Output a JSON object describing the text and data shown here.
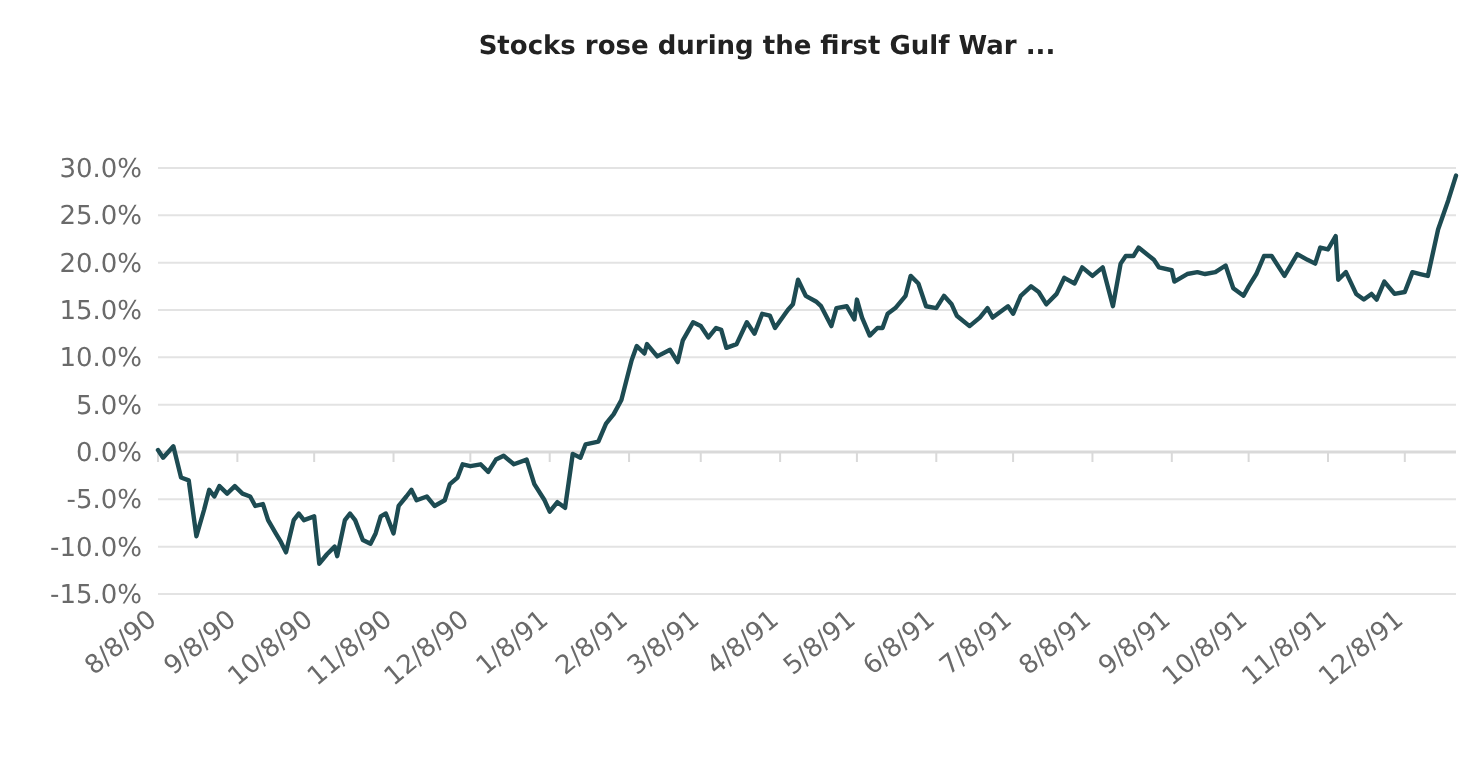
{
  "chart_data": {
    "type": "line",
    "title": "Stocks rose during the first Gulf War ...",
    "x": [
      "1990-08-08",
      "1990-08-10",
      "1990-08-14",
      "1990-08-17",
      "1990-08-20",
      "1990-08-23",
      "1990-08-26",
      "1990-08-28",
      "1990-08-30",
      "1990-09-01",
      "1990-09-04",
      "1990-09-07",
      "1990-09-10",
      "1990-09-13",
      "1990-09-15",
      "1990-09-18",
      "1990-09-20",
      "1990-09-23",
      "1990-09-25",
      "1990-09-27",
      "1990-09-30",
      "1990-10-02",
      "1990-10-04",
      "1990-10-08",
      "1990-10-10",
      "1990-10-13",
      "1990-10-16",
      "1990-10-17",
      "1990-10-20",
      "1990-10-22",
      "1990-10-24",
      "1990-10-27",
      "1990-10-30",
      "1990-11-01",
      "1990-11-03",
      "1990-11-05",
      "1990-11-08",
      "1990-11-10",
      "1990-11-13",
      "1990-11-15",
      "1990-11-17",
      "1990-11-21",
      "1990-11-24",
      "1990-11-28",
      "1990-11-30",
      "1990-12-03",
      "1990-12-05",
      "1990-12-08",
      "1990-12-12",
      "1990-12-15",
      "1990-12-18",
      "1990-12-21",
      "1990-12-25",
      "1990-12-30",
      "1991-01-02",
      "1991-01-06",
      "1991-01-08",
      "1991-01-11",
      "1991-01-14",
      "1991-01-17",
      "1991-01-20",
      "1991-01-22",
      "1991-01-27",
      "1991-01-30",
      "1991-02-02",
      "1991-02-05",
      "1991-02-07",
      "1991-02-09",
      "1991-02-11",
      "1991-02-14",
      "1991-02-15",
      "1991-02-19",
      "1991-02-24",
      "1991-02-27",
      "1991-03-01",
      "1991-03-05",
      "1991-03-08",
      "1991-03-11",
      "1991-03-14",
      "1991-03-16",
      "1991-03-18",
      "1991-03-22",
      "1991-03-26",
      "1991-03-29",
      "1991-04-01",
      "1991-04-04",
      "1991-04-06",
      "1991-04-11",
      "1991-04-13",
      "1991-04-15",
      "1991-04-18",
      "1991-04-22",
      "1991-04-24",
      "1991-04-28",
      "1991-04-30",
      "1991-05-04",
      "1991-05-07",
      "1991-05-08",
      "1991-05-10",
      "1991-05-13",
      "1991-05-16",
      "1991-05-18",
      "1991-05-20",
      "1991-05-23",
      "1991-05-27",
      "1991-05-29",
      "1991-06-01",
      "1991-06-04",
      "1991-06-08",
      "1991-06-11",
      "1991-06-14",
      "1991-06-16",
      "1991-06-21",
      "1991-06-25",
      "1991-06-28",
      "1991-06-30",
      "1991-07-06",
      "1991-07-08",
      "1991-07-11",
      "1991-07-15",
      "1991-07-18",
      "1991-07-21",
      "1991-07-25",
      "1991-07-28",
      "1991-08-01",
      "1991-08-04",
      "1991-08-08",
      "1991-08-12",
      "1991-08-16",
      "1991-08-19",
      "1991-08-21",
      "1991-08-24",
      "1991-08-26",
      "1991-09-01",
      "1991-09-03",
      "1991-09-08",
      "1991-09-09",
      "1991-09-14",
      "1991-09-18",
      "1991-09-21",
      "1991-09-25",
      "1991-09-29",
      "1991-10-02",
      "1991-10-06",
      "1991-10-08",
      "1991-10-11",
      "1991-10-14",
      "1991-10-17",
      "1991-10-22",
      "1991-10-27",
      "1991-10-31",
      "1991-11-03",
      "1991-11-05",
      "1991-11-08",
      "1991-11-11",
      "1991-11-12",
      "1991-11-15",
      "1991-11-19",
      "1991-11-22",
      "1991-11-25",
      "1991-11-27",
      "1991-11-30",
      "1991-12-04",
      "1991-12-08",
      "1991-12-11",
      "1991-12-14",
      "1991-12-17",
      "1991-12-21",
      "1991-12-25",
      "1991-12-28"
    ],
    "series": [
      {
        "color": "#1d4b52",
        "values": [
          0.2,
          -0.6,
          0.6,
          -2.7,
          -3.0,
          -8.9,
          -6.1,
          -4.0,
          -4.7,
          -3.6,
          -4.4,
          -3.6,
          -4.4,
          -4.7,
          -5.7,
          -5.5,
          -7.2,
          -8.6,
          -9.5,
          -10.6,
          -7.2,
          -6.5,
          -7.2,
          -6.8,
          -11.8,
          -10.8,
          -10.0,
          -11.0,
          -7.2,
          -6.5,
          -7.2,
          -9.3,
          -9.7,
          -8.6,
          -6.8,
          -6.5,
          -8.6,
          -5.7,
          -4.7,
          -4.0,
          -5.1,
          -4.7,
          -5.7,
          -5.1,
          -3.4,
          -2.7,
          -1.3,
          -1.5,
          -1.3,
          -2.1,
          -0.8,
          -0.4,
          -1.3,
          -0.8,
          -3.4,
          -5.1,
          -6.3,
          -5.3,
          -5.9,
          -0.2,
          -0.6,
          0.8,
          1.1,
          3.0,
          4.0,
          5.5,
          7.6,
          9.7,
          11.2,
          10.4,
          11.4,
          10.1,
          10.8,
          9.5,
          11.8,
          13.7,
          13.3,
          12.1,
          13.1,
          12.9,
          11.0,
          11.4,
          13.7,
          12.5,
          14.6,
          14.4,
          13.1,
          15.0,
          15.6,
          18.2,
          16.5,
          15.9,
          15.4,
          13.3,
          15.2,
          15.4,
          14.0,
          16.1,
          14.2,
          12.3,
          13.1,
          13.1,
          14.6,
          15.2,
          16.5,
          18.6,
          17.8,
          15.4,
          15.2,
          16.5,
          15.6,
          14.4,
          13.3,
          14.2,
          15.2,
          14.2,
          15.4,
          14.6,
          16.5,
          17.5,
          16.9,
          15.6,
          16.7,
          18.4,
          17.8,
          19.5,
          18.6,
          19.5,
          15.4,
          19.9,
          20.7,
          20.7,
          21.6,
          20.3,
          19.5,
          19.2,
          18.0,
          18.8,
          19.0,
          18.8,
          19.0,
          19.7,
          17.3,
          16.5,
          17.5,
          18.8,
          20.7,
          20.7,
          18.6,
          20.9,
          20.3,
          19.9,
          21.6,
          21.4,
          22.8,
          18.2,
          19.0,
          16.7,
          16.1,
          16.7,
          16.1,
          18.0,
          16.7,
          16.9,
          19.0,
          18.8,
          18.6,
          23.5,
          26.6,
          29.2
        ]
      }
    ],
    "xlim": [
      "1990-08-08",
      "1991-12-28"
    ],
    "xticks": [
      {
        "value": "1990-08-08",
        "label": "8/8/90"
      },
      {
        "value": "1990-09-08",
        "label": "9/8/90"
      },
      {
        "value": "1990-10-08",
        "label": "10/8/90"
      },
      {
        "value": "1990-11-08",
        "label": "11/8/90"
      },
      {
        "value": "1990-12-08",
        "label": "12/8/90"
      },
      {
        "value": "1991-01-08",
        "label": "1/8/91"
      },
      {
        "value": "1991-02-08",
        "label": "2/8/91"
      },
      {
        "value": "1991-03-08",
        "label": "3/8/91"
      },
      {
        "value": "1991-04-08",
        "label": "4/8/91"
      },
      {
        "value": "1991-05-08",
        "label": "5/8/91"
      },
      {
        "value": "1991-06-08",
        "label": "6/8/91"
      },
      {
        "value": "1991-07-08",
        "label": "7/8/91"
      },
      {
        "value": "1991-08-08",
        "label": "8/8/91"
      },
      {
        "value": "1991-09-08",
        "label": "9/8/91"
      },
      {
        "value": "1991-10-08",
        "label": "10/8/91"
      },
      {
        "value": "1991-11-08",
        "label": "11/8/91"
      },
      {
        "value": "1991-12-08",
        "label": "12/8/91"
      }
    ],
    "ylim": [
      -15,
      30
    ],
    "yticks": [
      {
        "value": -15,
        "label": "-15.0%"
      },
      {
        "value": -10,
        "label": "-10.0%"
      },
      {
        "value": -5,
        "label": "-5.0%"
      },
      {
        "value": 0,
        "label": "0.0%"
      },
      {
        "value": 5,
        "label": "5.0%"
      },
      {
        "value": 10,
        "label": "10.0%"
      },
      {
        "value": 15,
        "label": "15.0%"
      },
      {
        "value": 20,
        "label": "20.0%"
      },
      {
        "value": 25,
        "label": "25.0%"
      },
      {
        "value": 30,
        "label": "30.0%"
      }
    ],
    "grid": "y",
    "marker": "none",
    "line_style": "solid"
  }
}
